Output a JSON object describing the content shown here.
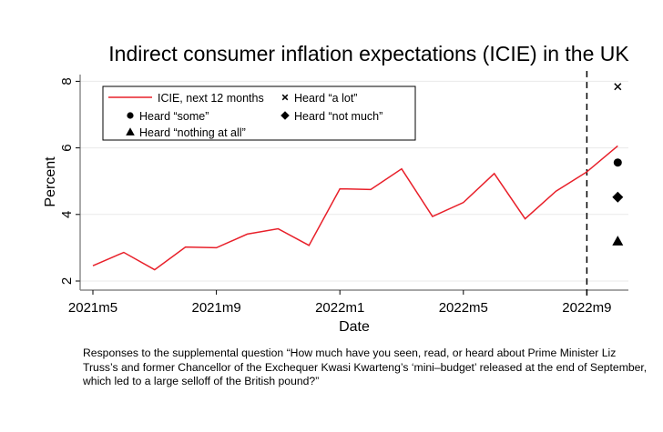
{
  "chart_data": {
    "type": "line",
    "title": "Indirect consumer inflation expectations (ICIE) in the UK",
    "xlabel": "Date",
    "ylabel": "Percent",
    "x_ticks": [
      "2021m5",
      "2021m9",
      "2022m1",
      "2022m5",
      "2022m9"
    ],
    "y_ticks": [
      2,
      4,
      6,
      8
    ],
    "ylim": [
      1.8,
      8.3
    ],
    "grid": true,
    "legend_placement": "top-left",
    "vertical_line": {
      "x": "2022m9",
      "style": "dashed"
    },
    "x": [
      "2021m5",
      "2021m6",
      "2021m7",
      "2021m8",
      "2021m9",
      "2021m10",
      "2021m11",
      "2021m12",
      "2022m1",
      "2022m2",
      "2022m3",
      "2022m4",
      "2022m5",
      "2022m6",
      "2022m7",
      "2022m8",
      "2022m9",
      "2022m10"
    ],
    "series": [
      {
        "name": "ICIE, next 12 months",
        "color": "#e8202a",
        "marker": "line",
        "values": [
          2.46,
          2.86,
          2.34,
          3.02,
          3.0,
          3.41,
          3.57,
          3.07,
          4.77,
          4.75,
          5.37,
          3.94,
          4.36,
          5.23,
          3.87,
          4.7,
          5.28,
          6.06
        ]
      }
    ],
    "points": [
      {
        "name": "Heard “a lot”",
        "marker": "x",
        "x": "2022m10",
        "y": 7.84
      },
      {
        "name": "Heard “some”",
        "marker": "circle",
        "x": "2022m10",
        "y": 5.56
      },
      {
        "name": "Heard “not much”",
        "marker": "diamond",
        "x": "2022m10",
        "y": 4.52
      },
      {
        "name": "Heard “nothing at all”",
        "marker": "triangle",
        "x": "2022m10",
        "y": 3.2
      }
    ]
  },
  "caption": "Responses to the supplemental question “How much have you seen, read, or heard about Prime Minister Liz Truss’s and former Chancellor of the Exchequer Kwasi Kwarteng’s ‘mini–budget’ released at the end of September, which led to a large selloff of the British pound?”"
}
